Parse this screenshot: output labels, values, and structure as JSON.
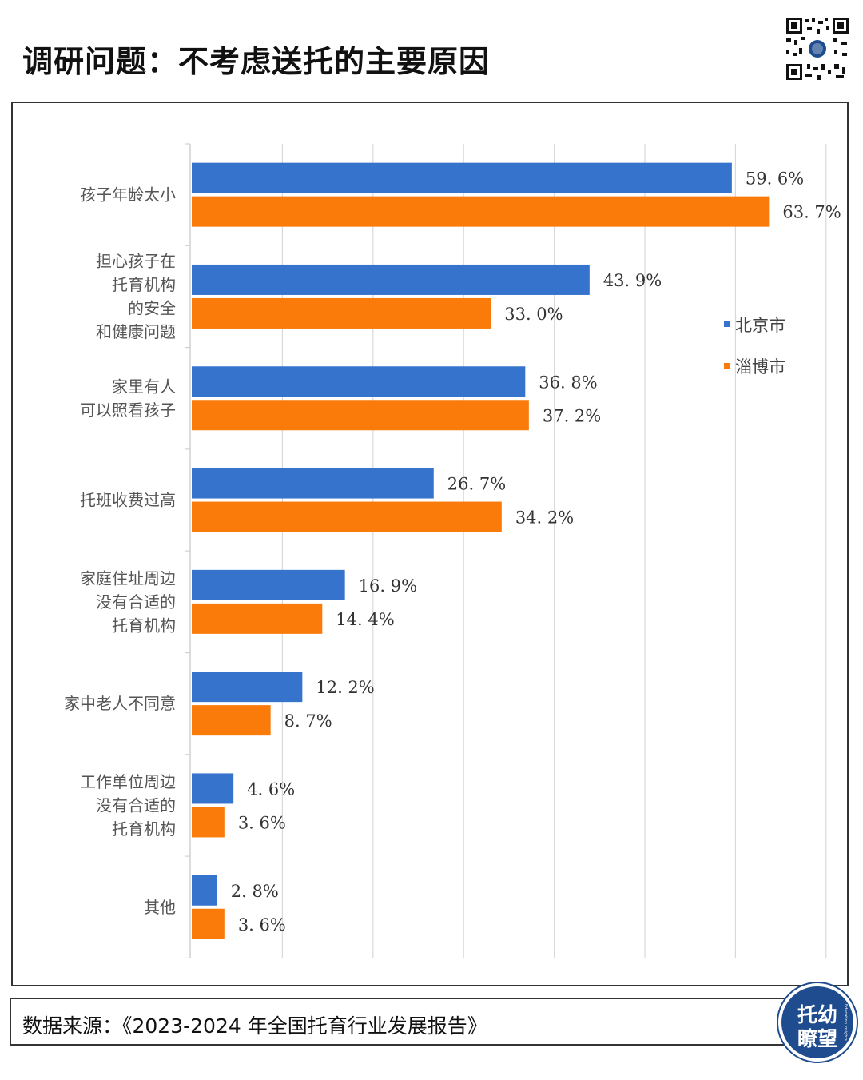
{
  "header": {
    "title": "调研问题：不考虑送托的主要原因"
  },
  "colors": {
    "beijing": "#3573CC",
    "zibo": "#FA7A0A",
    "logo_bg": "#1F4C8F"
  },
  "chart_data": {
    "type": "bar",
    "orientation": "horizontal",
    "title": "调研问题：不考虑送托的主要原因",
    "categories": [
      [
        "孩子年龄太小"
      ],
      [
        "担心孩子在",
        "托育机构",
        "的安全",
        "和健康问题"
      ],
      [
        "家里有人",
        "可以照看孩子"
      ],
      [
        "托班收费过高"
      ],
      [
        "家庭住址周边",
        "没有合适的",
        "托育机构"
      ],
      [
        "家中老人不同意"
      ],
      [
        "工作单位周边",
        "没有合适的",
        "托育机构"
      ],
      [
        "其他"
      ]
    ],
    "series": [
      {
        "name": "北京市",
        "color": "#3573CC",
        "values": [
          59.6,
          43.9,
          36.8,
          26.7,
          16.9,
          12.2,
          4.6,
          2.8
        ],
        "labels": [
          "59. 6%",
          "43. 9%",
          "36. 8%",
          "26. 7%",
          "16. 9%",
          "12. 2%",
          "4. 6%",
          "2. 8%"
        ]
      },
      {
        "name": "淄博市",
        "color": "#FA7A0A",
        "values": [
          63.7,
          33.0,
          37.2,
          34.2,
          14.4,
          8.7,
          3.6,
          3.6
        ],
        "labels": [
          "63. 7%",
          "33. 0%",
          "37. 2%",
          "34. 2%",
          "14. 4%",
          "8. 7%",
          "3. 6%",
          "3. 6%"
        ]
      }
    ],
    "xlim": [
      0,
      70
    ],
    "grid": true,
    "legend": "right-middle"
  },
  "footer": {
    "source": "数据来源：《2023-2024 年全国托育行业发展报告》"
  },
  "logo": {
    "line1": "托幼",
    "line2": "瞭望",
    "side_text": "Education Insights"
  }
}
